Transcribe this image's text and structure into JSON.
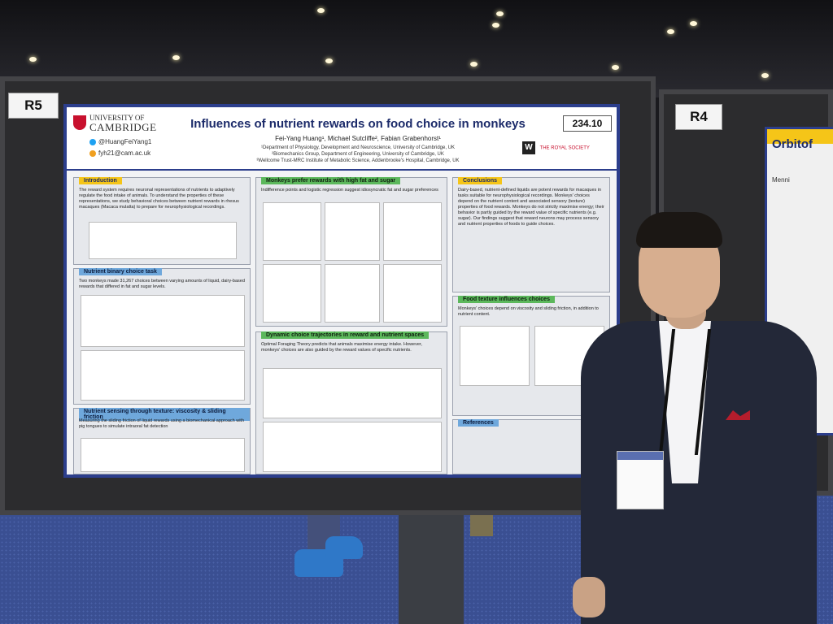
{
  "scene": {
    "left_board_label": "R5",
    "right_board_label": "R4"
  },
  "poster": {
    "university_line1": "UNIVERSITY OF",
    "university_line2": "CAMBRIDGE",
    "twitter": "@HuangFeiYang1",
    "email": "fyh21@cam.ac.uk",
    "title": "Influences of nutrient rewards on food choice in monkeys",
    "authors": "Fei-Yang Huang¹, Michael Sutcliffe², Fabian Grabenhorst¹",
    "affiliation_1": "¹Department of Physiology, Development and Neuroscience, University of Cambridge, UK",
    "affiliation_2": "²Biomechanics Group, Department of Engineering, University of Cambridge, UK",
    "affiliation_3": "³Wellcome Trust-MRC Institute of Metabolic Science, Addenbrooke's Hospital, Cambridge, UK",
    "poster_number": "234.10",
    "logo_w": "W",
    "logo_royal_society": "THE ROYAL SOCIETY",
    "sections": {
      "introduction": {
        "title": "Introduction",
        "text": "The reward system requires neuronal representations of nutrients to adaptively regulate the food intake of animals. To understand the properties of these representations, we study behavioral choices between nutrient rewards in rhesus macaques (Macaca mulatta) to prepare for neurophysiological recordings."
      },
      "binary_choice": {
        "title": "Nutrient binary choice task",
        "text": "Two monkeys made 31,267 choices between varying amounts of liquid, dairy-based rewards that differed in fat and sugar levels."
      },
      "texture": {
        "title": "Nutrient sensing through texture: viscosity & sliding friction",
        "text": "Measuring the sliding friction of liquid rewards using a biomechanical approach with pig tongues to simulate intraoral fat detection"
      },
      "fat_sugar": {
        "title": "Monkeys prefer rewards with high fat and sugar",
        "text": "Indifference points and logistic regression suggest idiosyncratic fat and sugar preferences"
      },
      "dynamic": {
        "title": "Dynamic choice trajectories in reward and nutrient spaces",
        "text": "Optimal Foraging Theory predicts that animals maximise energy intake. However, monkeys' choices are also guided by the reward values of specific nutrients."
      },
      "conclusions": {
        "title": "Conclusions",
        "text": "Dairy-based, nutrient-defined liquids are potent rewards for macaques in tasks suitable for neurophysiological recordings. Monkeys' choices depend on the nutrient content and associated sensory (texture) properties of food rewards. Monkeys do not strictly maximise energy; their behavior is partly guided by the reward value of specific nutrients (e.g. sugar). Our findings suggest that reward neurons may process sensory and nutrient properties of foods to guide choices."
      },
      "food_texture": {
        "title": "Food texture influences choices",
        "text": "Monkeys' choices depend on viscosity and sliding friction, in addition to nutrient content."
      },
      "references": {
        "title": "References"
      }
    }
  },
  "right_poster": {
    "title": "Orbitof",
    "logo_text": "Menni"
  }
}
